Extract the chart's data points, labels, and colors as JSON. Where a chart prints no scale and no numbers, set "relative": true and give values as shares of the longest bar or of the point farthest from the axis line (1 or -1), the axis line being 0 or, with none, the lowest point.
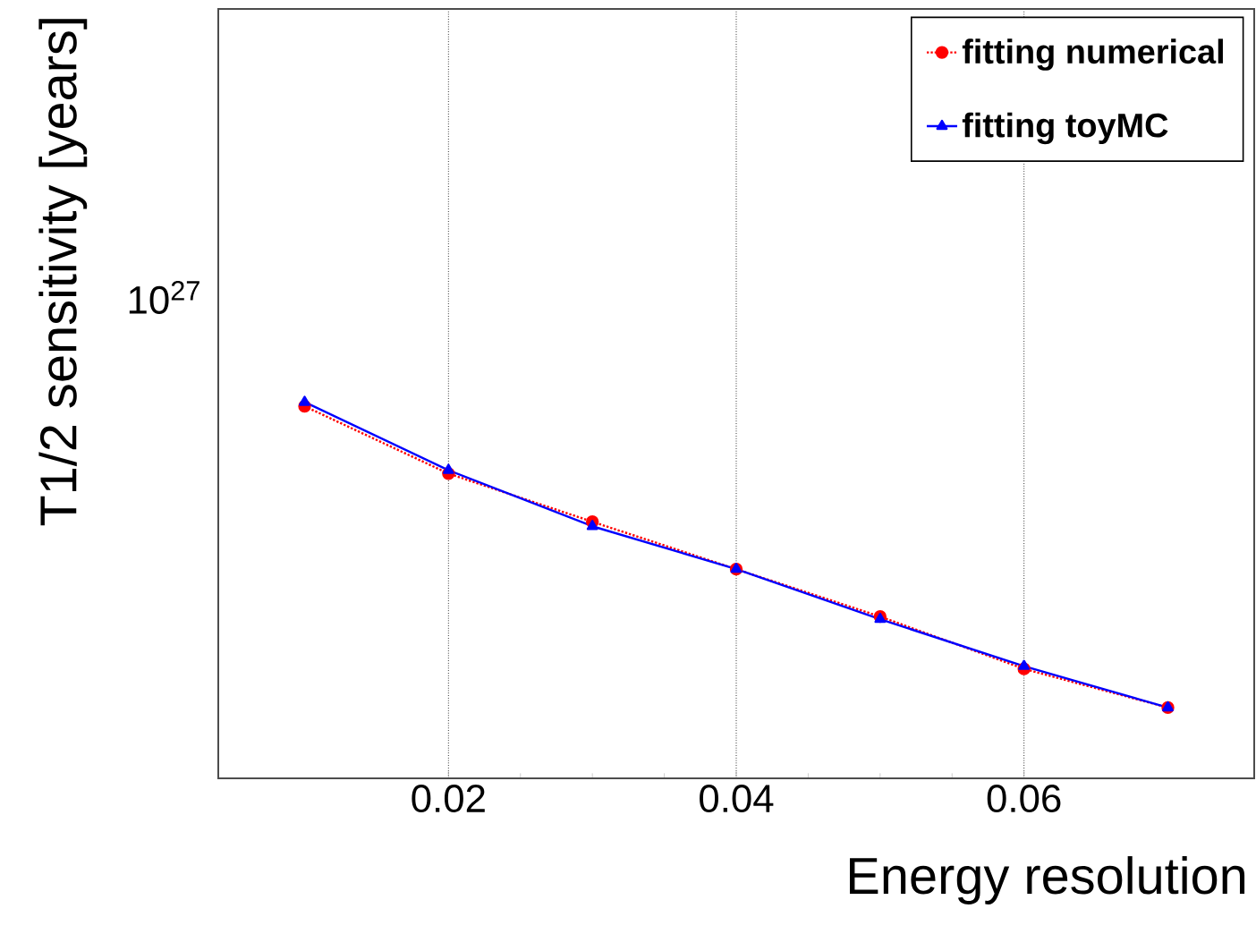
{
  "chart_data": {
    "type": "line",
    "xlabel": "Energy resolution",
    "ylabel": "T1/2 sensitivity [years]",
    "relative": true,
    "annotations": [
      "10$^{27}$"
    ],
    "x": [
      0.01,
      0.02,
      0.03,
      0.04,
      0.05,
      0.06,
      0.07
    ],
    "series": [
      {
        "name": "fitting numerical",
        "color": "#ff0000",
        "marker": "circle",
        "line_style": "dotted",
        "values": [
          0.989,
          0.81,
          0.682,
          0.556,
          0.43,
          0.291,
          0.188
        ]
      },
      {
        "name": "fitting toyMC",
        "color": "#0000ff",
        "marker": "triangle",
        "line_style": "solid",
        "values": [
          1,
          0.819,
          0.67,
          0.556,
          0.423,
          0.298,
          0.188
        ]
      }
    ],
    "xlim": [
      0.004,
      0.076
    ],
    "xticks": [
      0.02,
      0.04,
      0.06
    ],
    "grid": "x",
    "legend": "top right"
  }
}
